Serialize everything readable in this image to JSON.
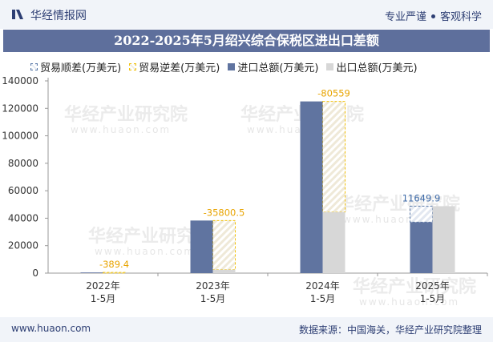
{
  "header": {
    "brand": "华经情报网",
    "slogan_left": "专业严谨",
    "slogan_right": "客观科学"
  },
  "watermark": {
    "text": "华经产业研究院",
    "url": "www.huaon.com"
  },
  "footer": {
    "url": "www.huaon.com",
    "source": "数据来源：中国海关，华经产业研究院整理"
  },
  "colors": {
    "import": "#6074a0",
    "export": "#d7d7d7",
    "surplus_border": "#5a79a8",
    "deficit_border": "#f2c20c",
    "surplus_label": "#3d6aa8",
    "deficit_label": "#e8a400"
  },
  "chart_data": {
    "type": "bar",
    "title": "2022-2025年5月绍兴综合保税区进出口差额",
    "categories": [
      [
        "2022年",
        "1-5月"
      ],
      [
        "2023年",
        "1-5月"
      ],
      [
        "2024年",
        "1-5月"
      ],
      [
        "2025年",
        "1-5月"
      ]
    ],
    "legend": [
      "贸易顺差(万美元)",
      "贸易逆差(万美元)",
      "进口总额(万美元)",
      "出口总额(万美元)"
    ],
    "series": [
      {
        "name": "进口总额(万美元)",
        "values": [
          480,
          38300,
          125050,
          37100
        ]
      },
      {
        "name": "出口总额(万美元)",
        "values": [
          90,
          2500,
          44500,
          48750
        ]
      }
    ],
    "balance": [
      {
        "value": -389.4,
        "label": "-389.4",
        "kind": "deficit"
      },
      {
        "value": -35800.5,
        "label": "-35800.5",
        "kind": "deficit"
      },
      {
        "value": -80559,
        "label": "-80559",
        "kind": "deficit"
      },
      {
        "value": 11649.9,
        "label": "11649.9",
        "kind": "surplus"
      }
    ],
    "ylim": [
      0,
      140000
    ],
    "yticks": [
      0,
      20000,
      40000,
      60000,
      80000,
      100000,
      120000,
      140000
    ],
    "xlabel": "",
    "ylabel": "",
    "legend_position": "top-left"
  }
}
